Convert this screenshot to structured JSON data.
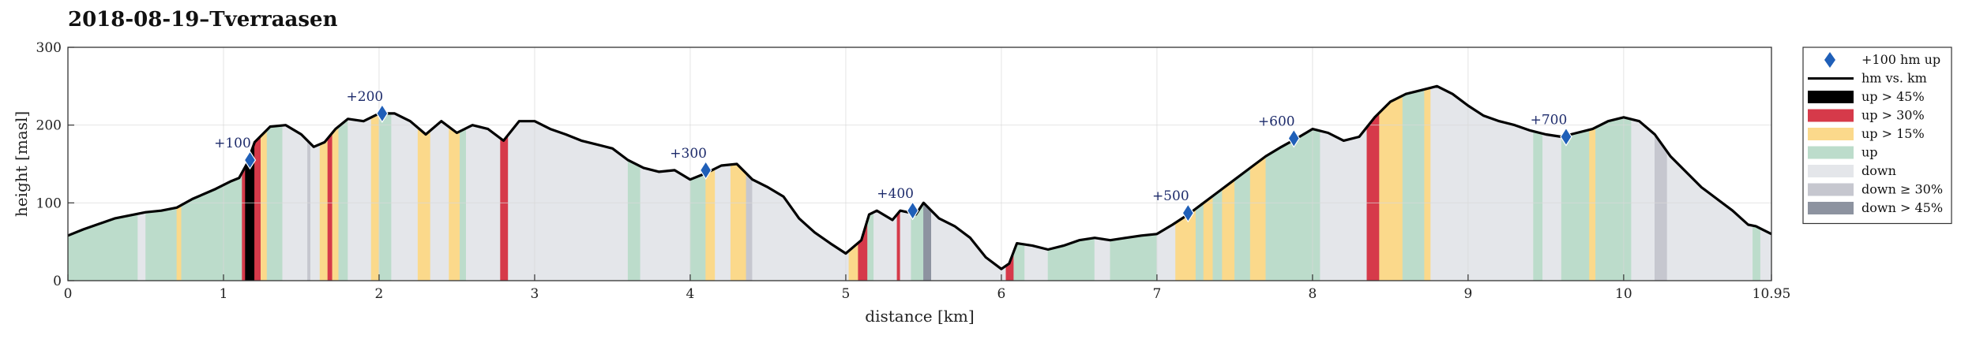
{
  "colors": {
    "up_gt_45": "#000000",
    "up_gt_30": "#d63a4a",
    "up_gt_15": "#fbd98b",
    "up": "#bcdccb",
    "down": "#e4e6ea",
    "down_ge_30": "#c6c7cf",
    "down_gt_45": "#8d93a0",
    "profile": "#000000",
    "marker": "#1f5fb8",
    "grid": "#d8d8d8"
  },
  "chart_data": {
    "type": "area",
    "title": "2018-08-19–Tverraasen",
    "xlabel": "distance [km]",
    "ylabel": "height [masl]",
    "xlim": [
      0,
      10.95
    ],
    "ylim": [
      0,
      300
    ],
    "x_ticks": [
      0,
      1,
      2,
      3,
      4,
      5,
      6,
      7,
      8,
      9,
      10,
      10.95
    ],
    "x_tick_labels": [
      "0",
      "1",
      "2",
      "3",
      "4",
      "5",
      "6",
      "7",
      "8",
      "9",
      "10",
      "10.95"
    ],
    "y_ticks": [
      0,
      100,
      200,
      300
    ],
    "y_tick_labels": [
      "0",
      "100",
      "200",
      "300"
    ],
    "grid": true,
    "legend_position": "outside-right",
    "profile": {
      "x": [
        0,
        0.1,
        0.3,
        0.5,
        0.6,
        0.7,
        0.8,
        0.95,
        1.05,
        1.1,
        1.15,
        1.2,
        1.3,
        1.4,
        1.5,
        1.58,
        1.65,
        1.72,
        1.8,
        1.9,
        2.0,
        2.1,
        2.2,
        2.3,
        2.4,
        2.5,
        2.6,
        2.7,
        2.8,
        2.9,
        3.0,
        3.1,
        3.2,
        3.3,
        3.4,
        3.5,
        3.6,
        3.7,
        3.8,
        3.9,
        4.0,
        4.1,
        4.2,
        4.3,
        4.4,
        4.5,
        4.6,
        4.7,
        4.8,
        4.9,
        5.0,
        5.1,
        5.15,
        5.2,
        5.3,
        5.35,
        5.4,
        5.45,
        5.5,
        5.55,
        5.6,
        5.7,
        5.8,
        5.9,
        6.0,
        6.05,
        6.1,
        6.2,
        6.3,
        6.4,
        6.5,
        6.6,
        6.7,
        6.8,
        6.9,
        7.0,
        7.1,
        7.2,
        7.3,
        7.4,
        7.5,
        7.6,
        7.7,
        7.8,
        7.9,
        8.0,
        8.1,
        8.2,
        8.3,
        8.4,
        8.5,
        8.6,
        8.7,
        8.8,
        8.9,
        9.0,
        9.1,
        9.2,
        9.3,
        9.4,
        9.5,
        9.6,
        9.7,
        9.8,
        9.9,
        10.0,
        10.1,
        10.2,
        10.3,
        10.4,
        10.5,
        10.6,
        10.7,
        10.8,
        10.85,
        10.9,
        10.95
      ],
      "y": [
        58,
        66,
        80,
        88,
        90,
        94,
        105,
        118,
        128,
        132,
        150,
        178,
        198,
        200,
        188,
        172,
        178,
        195,
        208,
        205,
        215,
        215,
        205,
        188,
        205,
        190,
        200,
        195,
        180,
        205,
        205,
        195,
        188,
        180,
        175,
        170,
        155,
        145,
        140,
        142,
        130,
        138,
        148,
        150,
        130,
        120,
        108,
        80,
        62,
        48,
        35,
        52,
        85,
        90,
        78,
        90,
        88,
        85,
        100,
        90,
        80,
        70,
        55,
        30,
        15,
        22,
        48,
        45,
        40,
        45,
        52,
        55,
        52,
        55,
        58,
        60,
        72,
        85,
        100,
        115,
        130,
        145,
        160,
        172,
        183,
        195,
        190,
        180,
        185,
        210,
        230,
        240,
        245,
        250,
        240,
        225,
        212,
        205,
        200,
        193,
        188,
        185,
        190,
        195,
        205,
        210,
        205,
        188,
        160,
        140,
        120,
        105,
        90,
        72,
        70,
        65,
        60
      ]
    },
    "gradient_bands": [
      {
        "from": 0,
        "to": 0.45,
        "class": "up"
      },
      {
        "from": 0.45,
        "to": 0.5,
        "class": "down"
      },
      {
        "from": 0.5,
        "to": 0.7,
        "class": "up"
      },
      {
        "from": 0.7,
        "to": 0.73,
        "class": "up_gt_15"
      },
      {
        "from": 0.73,
        "to": 1.12,
        "class": "up"
      },
      {
        "from": 1.12,
        "to": 1.14,
        "class": "up_gt_30"
      },
      {
        "from": 1.14,
        "to": 1.2,
        "class": "up_gt_45"
      },
      {
        "from": 1.2,
        "to": 1.24,
        "class": "up_gt_30"
      },
      {
        "from": 1.24,
        "to": 1.28,
        "class": "up_gt_15"
      },
      {
        "from": 1.28,
        "to": 1.38,
        "class": "up"
      },
      {
        "from": 1.38,
        "to": 1.54,
        "class": "down"
      },
      {
        "from": 1.54,
        "to": 1.56,
        "class": "down_ge_30"
      },
      {
        "from": 1.56,
        "to": 1.62,
        "class": "down"
      },
      {
        "from": 1.62,
        "to": 1.67,
        "class": "up_gt_15"
      },
      {
        "from": 1.67,
        "to": 1.7,
        "class": "up_gt_30"
      },
      {
        "from": 1.7,
        "to": 1.74,
        "class": "up_gt_15"
      },
      {
        "from": 1.74,
        "to": 1.8,
        "class": "up"
      },
      {
        "from": 1.8,
        "to": 1.95,
        "class": "down"
      },
      {
        "from": 1.95,
        "to": 2.0,
        "class": "up_gt_15"
      },
      {
        "from": 2.0,
        "to": 2.08,
        "class": "up"
      },
      {
        "from": 2.08,
        "to": 2.25,
        "class": "down"
      },
      {
        "from": 2.25,
        "to": 2.33,
        "class": "up_gt_15"
      },
      {
        "from": 2.33,
        "to": 2.45,
        "class": "down"
      },
      {
        "from": 2.45,
        "to": 2.52,
        "class": "up_gt_15"
      },
      {
        "from": 2.52,
        "to": 2.56,
        "class": "up"
      },
      {
        "from": 2.56,
        "to": 2.78,
        "class": "down"
      },
      {
        "from": 2.78,
        "to": 2.83,
        "class": "up_gt_30"
      },
      {
        "from": 2.83,
        "to": 3.6,
        "class": "down"
      },
      {
        "from": 3.6,
        "to": 3.68,
        "class": "up"
      },
      {
        "from": 3.68,
        "to": 4.0,
        "class": "down"
      },
      {
        "from": 4.0,
        "to": 4.1,
        "class": "up"
      },
      {
        "from": 4.1,
        "to": 4.16,
        "class": "up_gt_15"
      },
      {
        "from": 4.16,
        "to": 4.26,
        "class": "down"
      },
      {
        "from": 4.26,
        "to": 4.36,
        "class": "up_gt_15"
      },
      {
        "from": 4.36,
        "to": 4.4,
        "class": "down_ge_30"
      },
      {
        "from": 4.4,
        "to": 5.02,
        "class": "down"
      },
      {
        "from": 5.02,
        "to": 5.08,
        "class": "up_gt_15"
      },
      {
        "from": 5.08,
        "to": 5.14,
        "class": "up_gt_30"
      },
      {
        "from": 5.14,
        "to": 5.18,
        "class": "up"
      },
      {
        "from": 5.18,
        "to": 5.33,
        "class": "down"
      },
      {
        "from": 5.33,
        "to": 5.35,
        "class": "up_gt_30"
      },
      {
        "from": 5.35,
        "to": 5.42,
        "class": "down"
      },
      {
        "from": 5.42,
        "to": 5.5,
        "class": "up"
      },
      {
        "from": 5.5,
        "to": 5.55,
        "class": "down_gt_45"
      },
      {
        "from": 5.55,
        "to": 6.03,
        "class": "down"
      },
      {
        "from": 6.03,
        "to": 6.08,
        "class": "up_gt_30"
      },
      {
        "from": 6.08,
        "to": 6.15,
        "class": "up"
      },
      {
        "from": 6.15,
        "to": 6.3,
        "class": "down"
      },
      {
        "from": 6.3,
        "to": 6.6,
        "class": "up"
      },
      {
        "from": 6.6,
        "to": 6.7,
        "class": "down"
      },
      {
        "from": 6.7,
        "to": 7.0,
        "class": "up"
      },
      {
        "from": 7.0,
        "to": 7.12,
        "class": "down"
      },
      {
        "from": 7.12,
        "to": 7.25,
        "class": "up_gt_15"
      },
      {
        "from": 7.25,
        "to": 7.3,
        "class": "up"
      },
      {
        "from": 7.3,
        "to": 7.36,
        "class": "up_gt_15"
      },
      {
        "from": 7.36,
        "to": 7.42,
        "class": "up"
      },
      {
        "from": 7.42,
        "to": 7.5,
        "class": "up_gt_15"
      },
      {
        "from": 7.5,
        "to": 7.6,
        "class": "up"
      },
      {
        "from": 7.6,
        "to": 7.7,
        "class": "up_gt_15"
      },
      {
        "from": 7.7,
        "to": 8.05,
        "class": "up"
      },
      {
        "from": 8.05,
        "to": 8.35,
        "class": "down"
      },
      {
        "from": 8.35,
        "to": 8.43,
        "class": "up_gt_30"
      },
      {
        "from": 8.43,
        "to": 8.58,
        "class": "up_gt_15"
      },
      {
        "from": 8.58,
        "to": 8.72,
        "class": "up"
      },
      {
        "from": 8.72,
        "to": 8.76,
        "class": "up_gt_15"
      },
      {
        "from": 8.76,
        "to": 9.42,
        "class": "down"
      },
      {
        "from": 9.42,
        "to": 9.48,
        "class": "up"
      },
      {
        "from": 9.48,
        "to": 9.6,
        "class": "down"
      },
      {
        "from": 9.6,
        "to": 9.78,
        "class": "up"
      },
      {
        "from": 9.78,
        "to": 9.82,
        "class": "up_gt_15"
      },
      {
        "from": 9.82,
        "to": 10.05,
        "class": "up"
      },
      {
        "from": 10.05,
        "to": 10.2,
        "class": "down"
      },
      {
        "from": 10.2,
        "to": 10.28,
        "class": "down_ge_30"
      },
      {
        "from": 10.28,
        "to": 10.83,
        "class": "down"
      },
      {
        "from": 10.83,
        "to": 10.88,
        "class": "up"
      },
      {
        "from": 10.88,
        "to": 10.95,
        "class": "down"
      }
    ],
    "markers": [
      {
        "x": 1.17,
        "y": 155,
        "label": "+100"
      },
      {
        "x": 2.02,
        "y": 215,
        "label": "+200"
      },
      {
        "x": 4.1,
        "y": 142,
        "label": "+300"
      },
      {
        "x": 5.43,
        "y": 90,
        "label": "+400"
      },
      {
        "x": 7.2,
        "y": 87,
        "label": "+500"
      },
      {
        "x": 7.88,
        "y": 183,
        "label": "+600"
      },
      {
        "x": 9.63,
        "y": 185,
        "label": "+700"
      }
    ],
    "legend": [
      {
        "key": "marker",
        "label": "+100 hm up"
      },
      {
        "key": "profile",
        "label": "hm vs. km"
      },
      {
        "key": "up_gt_45",
        "label": "up > 45%"
      },
      {
        "key": "up_gt_30",
        "label": "up > 30%"
      },
      {
        "key": "up_gt_15",
        "label": "up > 15%"
      },
      {
        "key": "up",
        "label": "up"
      },
      {
        "key": "down",
        "label": "down"
      },
      {
        "key": "down_ge_30",
        "label": "down ≥ 30%"
      },
      {
        "key": "down_gt_45",
        "label": "down > 45%"
      }
    ]
  }
}
